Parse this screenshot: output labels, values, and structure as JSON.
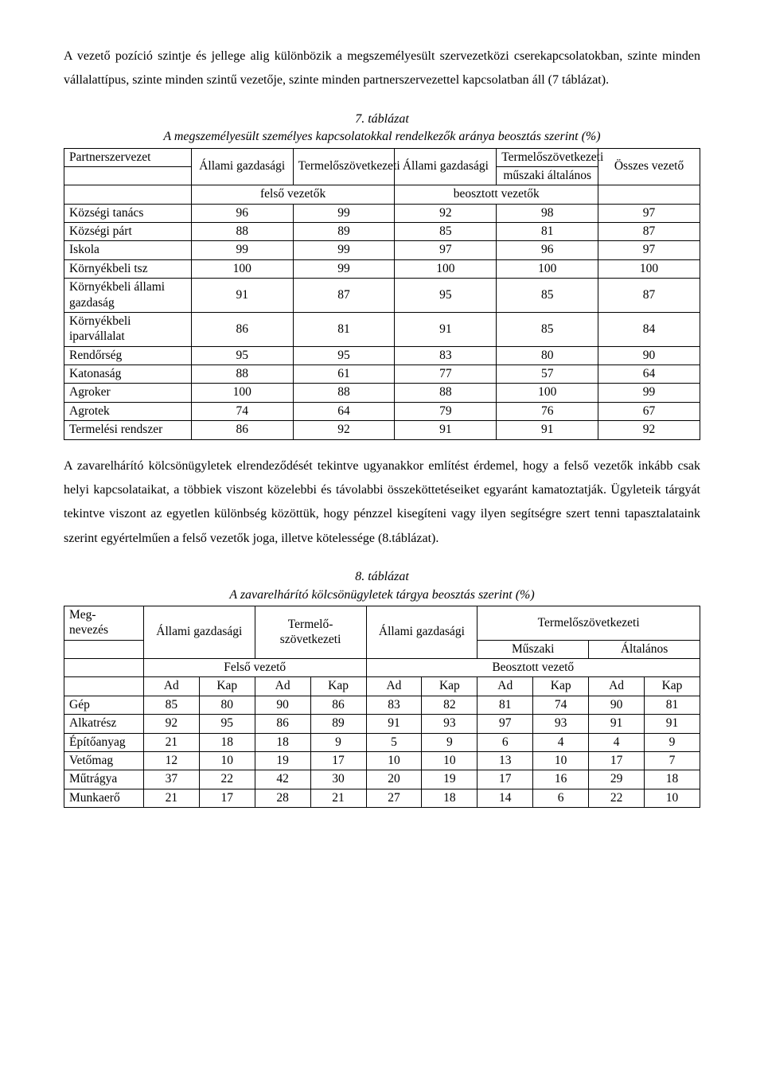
{
  "intro_paragraph": "A vezető pozíció szintje és jellege alig különbözik a megszemélyesült szervezetközi cserekapcsolatokban, szinte minden vállalattípus, szinte minden szintű vezetője, szinte minden partnerszervezettel kapcsolatban áll (7 táblázat).",
  "table7": {
    "caption_num": "7.   táblázat",
    "caption_title": "A megszemélyesült személyes kapcsolatokkal rendelkezők aránya beosztás szerint (%)",
    "headers": {
      "partner": "Partnerszervezet",
      "top_group1": "Állami gazdasági",
      "top_group2": "Termelőszövetkezeti",
      "top_group3": "Állami gazdasági",
      "top_group4": "Termelőszövetkezeti",
      "osszes": "Összes vezető",
      "muszaki": "műszaki",
      "altalanos": "általános",
      "felso": "felső vezetők",
      "beosztott": "beosztott vezetők"
    },
    "rows": [
      {
        "label": "Községi tanács",
        "c": [
          "96",
          "99",
          "92",
          "98",
          "97"
        ]
      },
      {
        "label": "Községi párt",
        "c": [
          "88",
          "89",
          "85",
          "81",
          "87"
        ]
      },
      {
        "label": "Iskola",
        "c": [
          "99",
          "99",
          "97",
          "96",
          "97"
        ]
      },
      {
        "label": "Környékbeli tsz",
        "c": [
          "100",
          "99",
          "100",
          "100",
          "100"
        ]
      },
      {
        "label": "Környékbeli állami gazdaság",
        "c": [
          "91",
          "87",
          "95",
          "85",
          "87"
        ]
      },
      {
        "label": "Környékbeli iparvállalat",
        "c": [
          "86",
          "81",
          "91",
          "85",
          "84"
        ]
      },
      {
        "label": "Rendőrség",
        "c": [
          "95",
          "95",
          "83",
          "80",
          "90"
        ]
      },
      {
        "label": "Katonaság",
        "c": [
          "88",
          "61",
          "77",
          "57",
          "64"
        ]
      },
      {
        "label": "Agroker",
        "c": [
          "100",
          "88",
          "88",
          "100",
          "99"
        ]
      },
      {
        "label": "Agrotek",
        "c": [
          "74",
          "64",
          "79",
          "76",
          "67"
        ]
      },
      {
        "label": "Termelési rendszer",
        "c": [
          "86",
          "92",
          "91",
          "91",
          "92"
        ]
      }
    ]
  },
  "mid_paragraph": "A zavarelhárító kölcsönügyletek elrendeződését tekintve ugyanakkor említést érdemel, hogy a felső vezetők inkább csak helyi kapcsolataikat, a többiek viszont közelebbi és távolabbi összeköttetéseiket egyaránt kamatoztatják. Ügyleteik tárgyát tekintve viszont az egyetlen különbség közöttük, hogy pénzzel kisegíteni vagy ilyen segítségre szert tenni tapasztalataink szerint egyértelműen a felső vezetők joga, illetve kötelessége (8.táblázat).",
  "table8": {
    "caption_num": "8.   táblázat",
    "caption_title": "A zavarelhárító kölcsönügyletek tárgya beosztás szerint (%)",
    "headers": {
      "meg": "Meg-\nnevezés",
      "col_ag1": "Állami gazdasági",
      "col_tsz1": "Termelő-\nszövetkezeti",
      "col_ag2": "Állami gazdasági",
      "col_tsz2": "Termelőszövetkezeti",
      "muszaki": "Műszaki",
      "altalanos": "Általános",
      "felso": "Felső vezető",
      "beosztott": "Beosztott vezető",
      "ad": "Ad",
      "kap": "Kap"
    },
    "rows": [
      {
        "label": "Gép",
        "c": [
          "85",
          "80",
          "90",
          "86",
          "83",
          "82",
          "81",
          "74",
          "90",
          "81"
        ]
      },
      {
        "label": "Alkatrész",
        "c": [
          "92",
          "95",
          "86",
          "89",
          "91",
          "93",
          "97",
          "93",
          "91",
          "91"
        ]
      },
      {
        "label": "Építőanyag",
        "c": [
          "21",
          "18",
          "18",
          "9",
          "5",
          "9",
          "6",
          "4",
          "4",
          "9"
        ]
      },
      {
        "label": "Vetőmag",
        "c": [
          "12",
          "10",
          "19",
          "17",
          "10",
          "10",
          "13",
          "10",
          "17",
          "7"
        ]
      },
      {
        "label": "Műtrágya",
        "c": [
          "37",
          "22",
          "42",
          "30",
          "20",
          "19",
          "17",
          "16",
          "29",
          "18"
        ]
      },
      {
        "label": "Munkaerő",
        "c": [
          "21",
          "17",
          "28",
          "21",
          "27",
          "18",
          "14",
          "6",
          "22",
          "10"
        ]
      }
    ]
  }
}
